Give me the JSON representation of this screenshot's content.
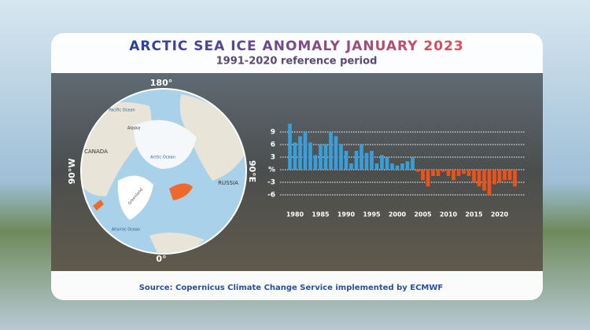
{
  "title": "ARCTIC SEA ICE ANOMALY JANUARY 2023",
  "subtitle": "1991-2020 reference period",
  "map": {
    "top": "180°",
    "bottom": "0°",
    "left": "90°W",
    "right": "90°E",
    "canada": "CANADA",
    "russia": "RUSSIA",
    "pacific": "Pacific Ocean",
    "atlantic": "Atlantic Ocean",
    "arctic": "Arctic Ocean",
    "alaska": "Alaska",
    "greenland": "Greenland"
  },
  "chart_data": {
    "type": "bar",
    "x": [
      1979,
      1980,
      1981,
      1982,
      1983,
      1984,
      1985,
      1986,
      1987,
      1988,
      1989,
      1990,
      1991,
      1992,
      1993,
      1994,
      1995,
      1996,
      1997,
      1998,
      1999,
      2000,
      2001,
      2002,
      2003,
      2004,
      2005,
      2006,
      2007,
      2008,
      2009,
      2010,
      2011,
      2012,
      2013,
      2014,
      2015,
      2016,
      2017,
      2018,
      2019,
      2020,
      2021,
      2022,
      2023
    ],
    "values": [
      11,
      6.5,
      8,
      9,
      6.5,
      3.5,
      6,
      6,
      9,
      8,
      6,
      4.5,
      1.5,
      4.5,
      6,
      4,
      4.5,
      1.5,
      3.5,
      3,
      1.5,
      1,
      1.5,
      2,
      3,
      -0.5,
      -2.5,
      -4,
      -1.5,
      -1.5,
      -0.5,
      -1.5,
      -2.5,
      -1.5,
      -1,
      -1.5,
      -3,
      -4,
      -5,
      -6,
      -3.5,
      -3,
      -2.5,
      -2.5,
      -4
    ],
    "positive_color": "#3a9fd8",
    "negative_color": "#e8541e",
    "xlim": [
      1978,
      2024
    ],
    "xticks": [
      1980,
      1985,
      1990,
      1995,
      2000,
      2005,
      2010,
      2015,
      2020
    ],
    "ylim": [
      -9,
      12
    ],
    "yticks": [
      9,
      6,
      3,
      {
        "value": 0,
        "label": "%"
      },
      -3,
      -6
    ],
    "grid": true
  },
  "source": "Source: Copernicus Climate Change Service implemented by ECMWF"
}
